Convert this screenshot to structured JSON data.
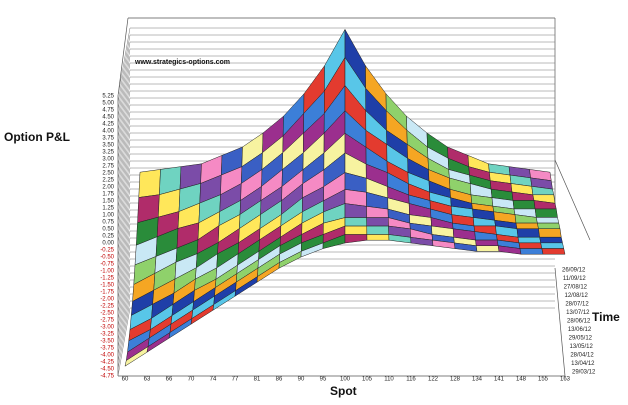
{
  "chart_data": {
    "type": "surface",
    "annotation": "www.strategics-options.com",
    "y_label": "Option P&L",
    "x_label": "Spot",
    "z_label": "Time",
    "categories": [
      "60",
      "63",
      "66",
      "70",
      "74",
      "77",
      "81",
      "86",
      "90",
      "95",
      "100",
      "105",
      "110",
      "116",
      "122",
      "128",
      "134",
      "141",
      "148",
      "155",
      "163"
    ],
    "time": [
      "29/03/12",
      "13/04/12",
      "28/04/12",
      "13/05/12",
      "29/05/12",
      "13/06/12",
      "28/06/12",
      "13/07/12",
      "28/07/12",
      "12/08/12",
      "27/08/12",
      "11/09/12",
      "26/09/12"
    ],
    "values": [
      [
        -4.4,
        -3.9,
        -3.4,
        -2.9,
        -2.4,
        -1.9,
        -1.4,
        -0.9,
        -0.5,
        -0.2,
        0.0,
        0.1,
        0.1,
        0.0,
        -0.1,
        -0.2,
        -0.3,
        -0.3,
        -0.4,
        -0.4,
        -0.4
      ],
      [
        -4.4,
        -3.9,
        -3.4,
        -2.9,
        -2.4,
        -1.9,
        -1.4,
        -0.9,
        -0.5,
        -0.2,
        0.1,
        0.1,
        0.1,
        0.0,
        -0.1,
        -0.2,
        -0.3,
        -0.3,
        -0.4,
        -0.4,
        -0.4
      ],
      [
        -4.3,
        -3.8,
        -3.3,
        -2.8,
        -2.3,
        -1.8,
        -1.3,
        -0.8,
        -0.4,
        -0.1,
        0.2,
        0.2,
        0.2,
        0.1,
        -0.1,
        -0.2,
        -0.3,
        -0.3,
        -0.4,
        -0.4,
        -0.4
      ],
      [
        -4.1,
        -3.7,
        -3.2,
        -2.7,
        -2.2,
        -1.7,
        -1.2,
        -0.7,
        -0.3,
        0.1,
        0.3,
        0.3,
        0.3,
        0.1,
        0.0,
        -0.1,
        -0.2,
        -0.3,
        -0.4,
        -0.4,
        -0.4
      ],
      [
        -3.9,
        -3.5,
        -3.0,
        -2.5,
        -2.1,
        -1.6,
        -1.1,
        -0.6,
        -0.1,
        0.3,
        0.6,
        0.5,
        0.4,
        0.2,
        0.1,
        -0.1,
        -0.2,
        -0.2,
        -0.3,
        -0.3,
        -0.3
      ],
      [
        -3.6,
        -3.2,
        -2.8,
        -2.3,
        -1.9,
        -1.4,
        -0.9,
        -0.4,
        0.1,
        0.5,
        0.9,
        0.8,
        0.6,
        0.4,
        0.2,
        0.0,
        -0.1,
        -0.2,
        -0.3,
        -0.3,
        -0.3
      ],
      [
        -3.3,
        -2.9,
        -2.5,
        -2.1,
        -1.6,
        -1.2,
        -0.7,
        -0.2,
        0.4,
        0.8,
        1.3,
        1.1,
        0.8,
        0.5,
        0.3,
        0.1,
        0.0,
        -0.1,
        -0.2,
        -0.3,
        -0.3
      ],
      [
        -2.9,
        -2.5,
        -2.1,
        -1.8,
        -1.4,
        -0.9,
        -0.4,
        0.1,
        0.7,
        1.2,
        1.8,
        1.4,
        1.1,
        0.7,
        0.4,
        0.2,
        0.0,
        -0.1,
        -0.2,
        -0.2,
        -0.2
      ],
      [
        -2.4,
        -2.1,
        -1.8,
        -1.5,
        -1.0,
        -0.6,
        -0.1,
        0.4,
        1.0,
        1.6,
        2.3,
        1.8,
        1.3,
        0.9,
        0.6,
        0.3,
        0.1,
        0.0,
        -0.1,
        -0.1,
        -0.2
      ],
      [
        -1.9,
        -1.6,
        -1.3,
        -1.1,
        -0.7,
        -0.3,
        0.2,
        0.8,
        1.4,
        2.1,
        2.9,
        2.2,
        1.7,
        1.2,
        0.8,
        0.5,
        0.3,
        0.1,
        0.0,
        -0.1,
        -0.1
      ],
      [
        -1.3,
        -1.1,
        -0.9,
        -0.6,
        -0.3,
        0.1,
        0.6,
        1.2,
        1.9,
        2.6,
        3.6,
        2.7,
        2.0,
        1.5,
        1.0,
        0.6,
        0.4,
        0.2,
        0.1,
        0.0,
        -0.1
      ],
      [
        -0.6,
        -0.5,
        -0.3,
        -0.1,
        0.2,
        0.5,
        1.0,
        1.6,
        2.4,
        3.2,
        4.4,
        3.3,
        2.5,
        1.8,
        1.2,
        0.8,
        0.5,
        0.3,
        0.2,
        0.1,
        0.0
      ],
      [
        0.1,
        0.2,
        0.3,
        0.4,
        0.7,
        1.0,
        1.5,
        2.1,
        2.9,
        3.9,
        5.2,
        3.9,
        2.9,
        2.1,
        1.5,
        1.0,
        0.7,
        0.4,
        0.3,
        0.2,
        0.1
      ]
    ],
    "colors": [
      "#f7f3a0",
      "#9b2f8e",
      "#3c7fd8",
      "#e33b2f",
      "#58c6e8",
      "#1f3fa8",
      "#f5a623",
      "#8fd16b",
      "#c9e8f5",
      "#2a8c3a",
      "#b02c6a",
      "#ffe75a",
      "#6fd3c1",
      "#7b4ca8",
      "#f58ac4",
      "#3a5fc4"
    ],
    "ylim": [
      -4.75,
      5.25
    ],
    "yticks": [
      5.25,
      {
        "value": 5,
        "label": "5.00"
      },
      4.75,
      {
        "value": 4.5,
        "label": "4.50"
      },
      4.25,
      {
        "value": 4,
        "label": "4.00"
      },
      3.75,
      {
        "value": 3.5,
        "label": "3.50"
      },
      3.25,
      {
        "value": 3,
        "label": "3.00"
      },
      2.75,
      {
        "value": 2.5,
        "label": "2.50"
      },
      2.25,
      {
        "value": 2,
        "label": "2.00"
      },
      1.75,
      {
        "value": 1.5,
        "label": "1.50"
      },
      1.25,
      {
        "value": 1,
        "label": "1.00"
      },
      0.75,
      {
        "value": 0.5,
        "label": "0.50"
      },
      0.25,
      {
        "value": 0,
        "label": "0.00"
      },
      -0.25,
      {
        "value": -0.5,
        "label": "-0.50"
      },
      -0.75,
      {
        "value": -1,
        "label": "-1.00"
      },
      -1.25,
      {
        "value": -1.5,
        "label": "-1.50"
      },
      -1.75,
      {
        "value": -2,
        "label": "-2.00"
      },
      -2.25,
      {
        "value": -2.5,
        "label": "-2.50"
      },
      -2.75,
      {
        "value": -3,
        "label": "-3.00"
      },
      -3.25,
      {
        "value": -3.5,
        "label": "-3.50"
      },
      -3.75,
      {
        "value": -4,
        "label": "-4.00"
      },
      -4.25,
      {
        "value": -4.5,
        "label": "-4.50"
      },
      -4.75
    ],
    "grid": true
  }
}
